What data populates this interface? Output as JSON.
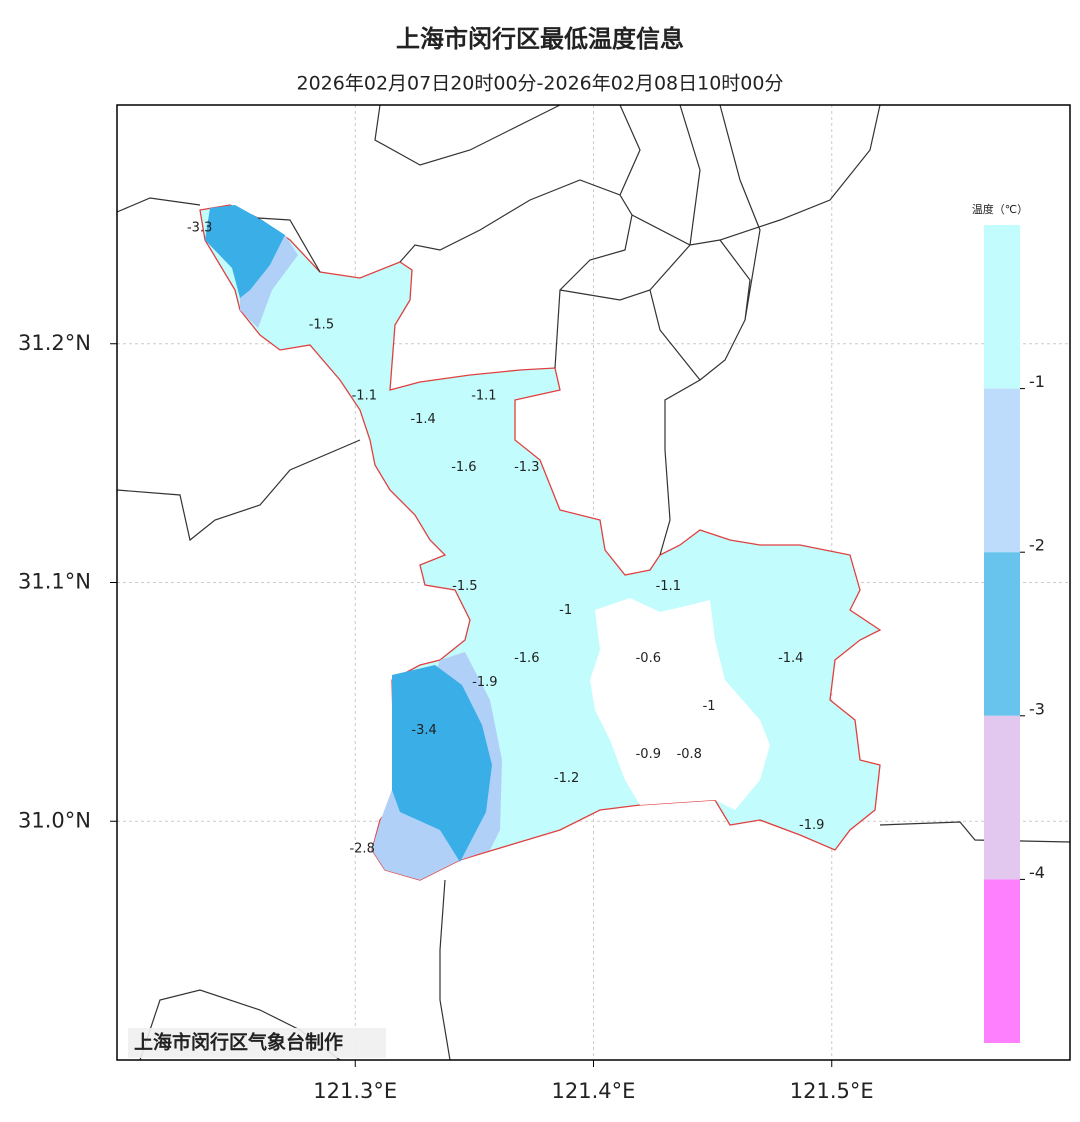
{
  "chart_data": {
    "type": "map",
    "title": "上海市闵行区最低温度信息",
    "subtitle": "2026年02月07日20时00分-2026年02月08日10时00分",
    "credit": "上海市闵行区气象台制作",
    "xlim": [
      121.2,
      121.6
    ],
    "ylim": [
      30.9,
      31.3
    ],
    "xticks": [
      {
        "value": 121.3,
        "label": "121.3°E"
      },
      {
        "value": 121.4,
        "label": "121.4°E"
      },
      {
        "value": 121.5,
        "label": "121.5°E"
      }
    ],
    "yticks": [
      {
        "value": 31.0,
        "label": "31.0°N"
      },
      {
        "value": 31.1,
        "label": "31.1°N"
      },
      {
        "value": 31.2,
        "label": "31.2°N"
      }
    ],
    "grid": true,
    "stations": {
      "x": [
        121.2347,
        121.2858,
        121.3038,
        121.3285,
        121.354,
        121.3456,
        121.372,
        121.346,
        121.3883,
        121.4314,
        121.372,
        121.423,
        121.4828,
        121.3544,
        121.4485,
        121.3289,
        121.423,
        121.4402,
        121.3887,
        121.4916,
        121.3029
      ],
      "y": [
        31.2485,
        31.2079,
        31.1782,
        31.1682,
        31.1782,
        31.1481,
        31.1481,
        31.0983,
        31.0883,
        31.0983,
        31.0682,
        31.0682,
        31.0682,
        31.0582,
        31.0481,
        31.0381,
        31.028,
        31.028,
        31.018,
        30.9983,
        30.9883
      ],
      "values": [
        -3.3,
        -1.5,
        -1.1,
        -1.4,
        -1.1,
        -1.6,
        -1.3,
        -1.5,
        -1,
        -1.1,
        -1.6,
        -0.6,
        -1.4,
        -1.9,
        -1,
        -3.4,
        -0.9,
        -0.8,
        -1.2,
        -1.9,
        -2.8
      ]
    },
    "legend": {
      "title": "温度（℃）",
      "colors": [
        "#c2fcfc",
        "#bddcfb",
        "#68c4ec",
        "#e2c8ee",
        "#ff80ff"
      ],
      "ticks": [
        -1,
        -2,
        -3,
        -4
      ]
    }
  }
}
